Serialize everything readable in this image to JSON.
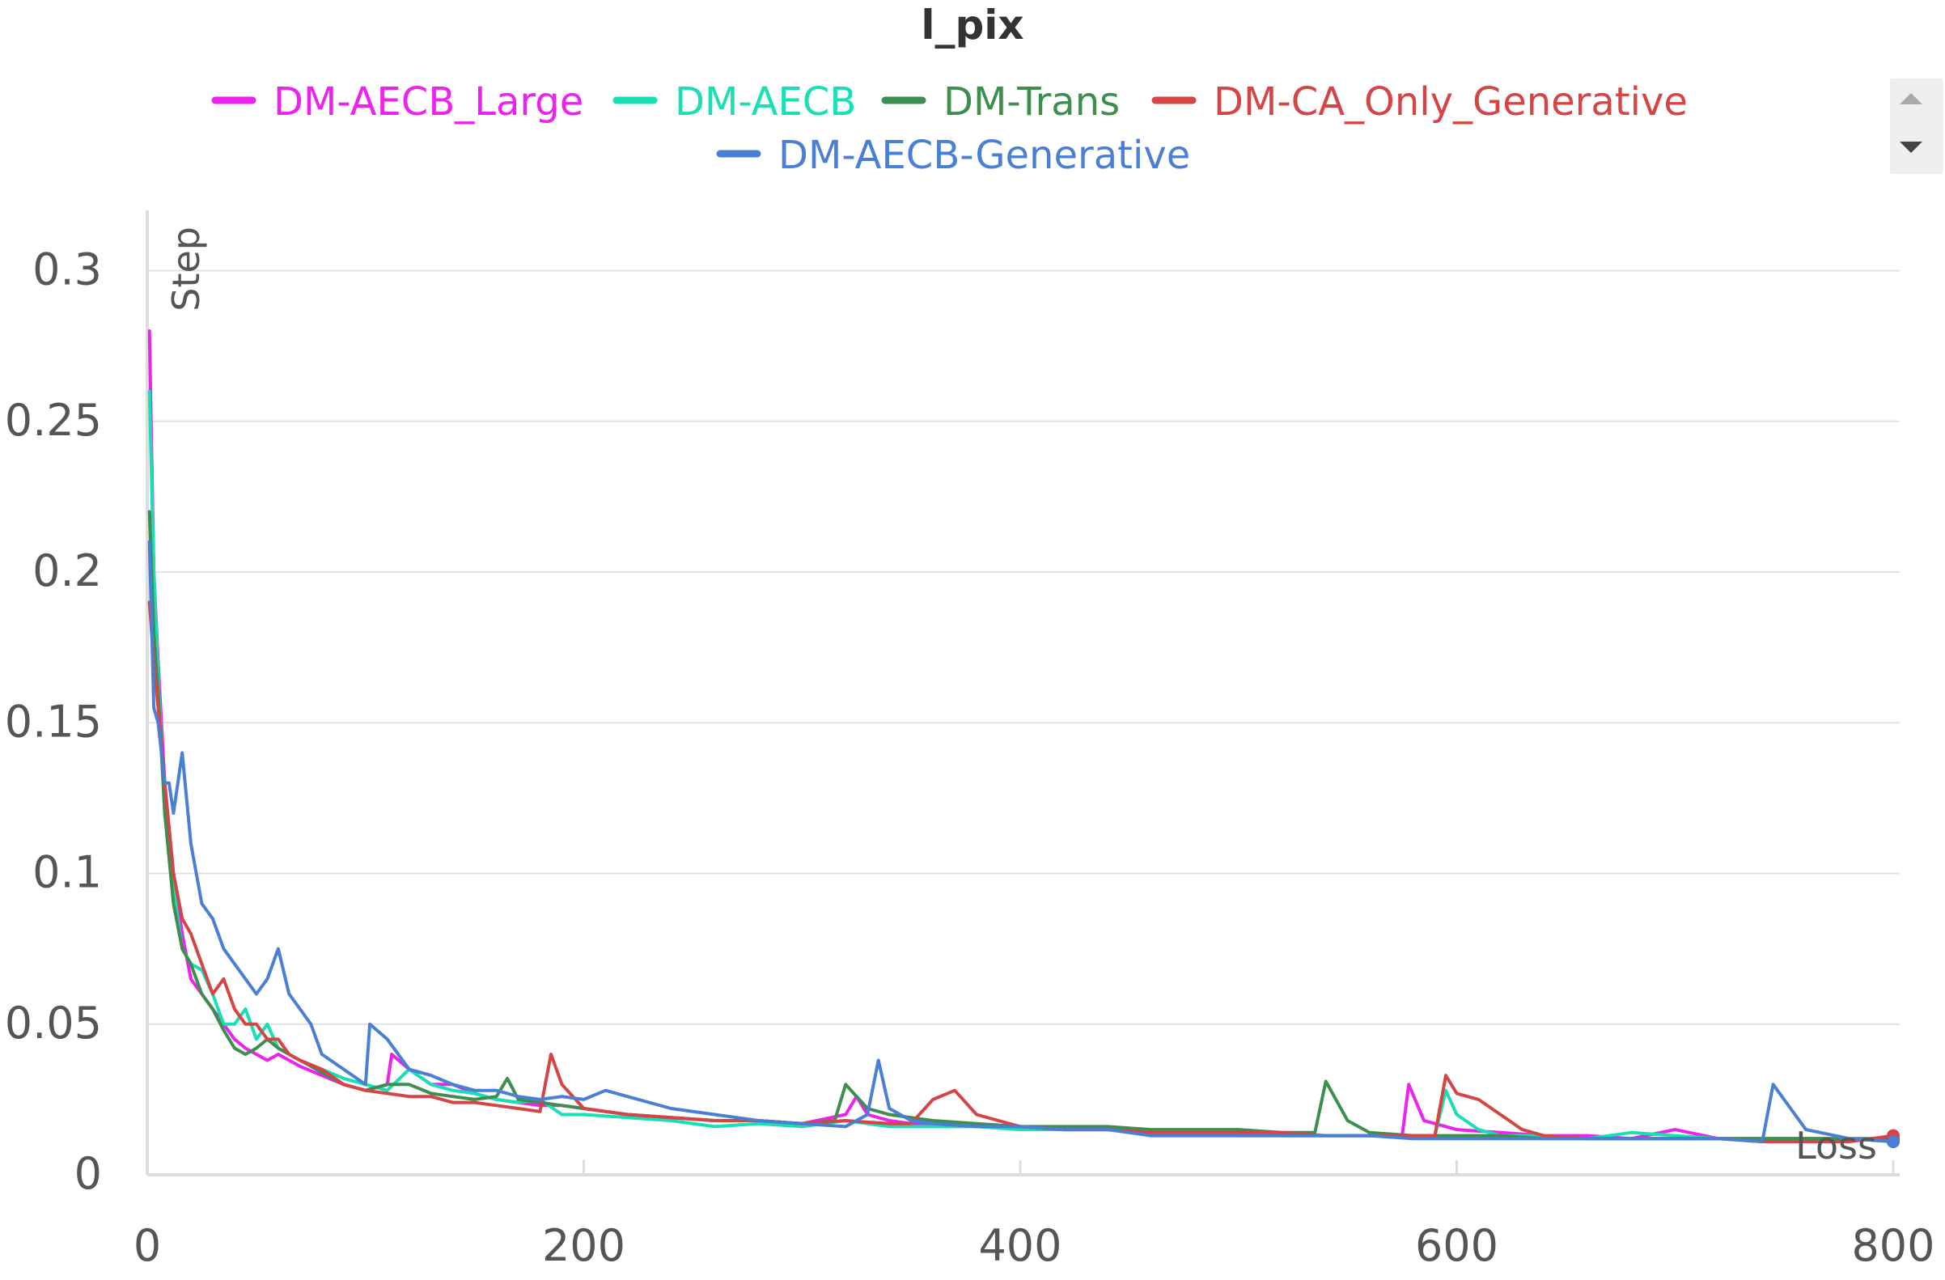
{
  "chart_data": {
    "type": "line",
    "title": "l_pix",
    "xlabel": "Step",
    "ylabel": "Loss",
    "xlim": [
      0,
      800
    ],
    "ylim": [
      0,
      0.32
    ],
    "xticks": [
      0,
      200,
      400,
      600,
      800
    ],
    "xtick_labels": [
      "0",
      "200",
      "400",
      "600",
      "800"
    ],
    "yticks": [
      0,
      0.05,
      0.1,
      0.15,
      0.2,
      0.25,
      0.3
    ],
    "ytick_labels": [
      "0",
      "0.05",
      "0.1",
      "0.15",
      "0.2",
      "0.25",
      "0.3"
    ],
    "grid": true,
    "legend_position": "top-center",
    "series": [
      {
        "name": "DM-AECB_Large",
        "color": "#ee22ee",
        "x": [
          1,
          3,
          5,
          8,
          12,
          16,
          20,
          25,
          30,
          35,
          40,
          45,
          50,
          55,
          60,
          65,
          70,
          80,
          90,
          100,
          110,
          112,
          120,
          130,
          140,
          150,
          160,
          170,
          180,
          190,
          200,
          220,
          240,
          260,
          280,
          300,
          320,
          325,
          330,
          340,
          350,
          360,
          380,
          400,
          420,
          440,
          460,
          480,
          500,
          520,
          540,
          560,
          575,
          578,
          585,
          600,
          620,
          640,
          660,
          680,
          700,
          720,
          740,
          760,
          780,
          800
        ],
        "y": [
          0.28,
          0.2,
          0.17,
          0.13,
          0.1,
          0.08,
          0.065,
          0.06,
          0.055,
          0.05,
          0.045,
          0.042,
          0.04,
          0.038,
          0.04,
          0.038,
          0.036,
          0.033,
          0.03,
          0.028,
          0.03,
          0.04,
          0.035,
          0.03,
          0.03,
          0.027,
          0.025,
          0.024,
          0.023,
          0.023,
          0.022,
          0.02,
          0.019,
          0.018,
          0.018,
          0.017,
          0.02,
          0.026,
          0.02,
          0.018,
          0.017,
          0.017,
          0.016,
          0.016,
          0.015,
          0.015,
          0.014,
          0.014,
          0.014,
          0.013,
          0.013,
          0.013,
          0.013,
          0.03,
          0.018,
          0.015,
          0.014,
          0.013,
          0.013,
          0.012,
          0.015,
          0.012,
          0.012,
          0.012,
          0.012,
          0.011
        ]
      },
      {
        "name": "DM-AECB",
        "color": "#16e0b4",
        "x": [
          1,
          3,
          5,
          8,
          12,
          16,
          20,
          25,
          30,
          35,
          40,
          45,
          50,
          55,
          60,
          65,
          70,
          80,
          90,
          100,
          110,
          120,
          130,
          140,
          150,
          160,
          170,
          180,
          190,
          200,
          220,
          240,
          260,
          280,
          300,
          320,
          340,
          360,
          380,
          400,
          420,
          440,
          460,
          480,
          500,
          520,
          540,
          560,
          580,
          590,
          595,
          600,
          610,
          620,
          640,
          660,
          680,
          700,
          720,
          740,
          760,
          780,
          800
        ],
        "y": [
          0.26,
          0.2,
          0.165,
          0.12,
          0.095,
          0.075,
          0.07,
          0.068,
          0.06,
          0.05,
          0.05,
          0.055,
          0.045,
          0.05,
          0.042,
          0.04,
          0.038,
          0.035,
          0.032,
          0.03,
          0.028,
          0.035,
          0.03,
          0.028,
          0.027,
          0.025,
          0.024,
          0.025,
          0.02,
          0.02,
          0.019,
          0.018,
          0.016,
          0.017,
          0.016,
          0.018,
          0.016,
          0.016,
          0.016,
          0.015,
          0.015,
          0.015,
          0.014,
          0.014,
          0.013,
          0.013,
          0.013,
          0.013,
          0.013,
          0.013,
          0.028,
          0.02,
          0.015,
          0.013,
          0.013,
          0.012,
          0.014,
          0.013,
          0.012,
          0.012,
          0.012,
          0.012,
          0.011
        ]
      },
      {
        "name": "DM-Trans",
        "color": "#3d8f4f",
        "x": [
          1,
          3,
          5,
          8,
          12,
          16,
          20,
          25,
          30,
          35,
          40,
          45,
          50,
          55,
          60,
          65,
          70,
          80,
          90,
          100,
          110,
          120,
          130,
          140,
          150,
          160,
          165,
          170,
          180,
          190,
          200,
          220,
          240,
          260,
          280,
          300,
          315,
          320,
          330,
          340,
          360,
          380,
          400,
          420,
          440,
          460,
          480,
          500,
          520,
          535,
          540,
          550,
          560,
          580,
          600,
          620,
          640,
          660,
          680,
          700,
          720,
          740,
          760,
          780,
          800
        ],
        "y": [
          0.22,
          0.18,
          0.16,
          0.12,
          0.09,
          0.075,
          0.07,
          0.06,
          0.055,
          0.048,
          0.042,
          0.04,
          0.042,
          0.045,
          0.042,
          0.04,
          0.038,
          0.034,
          0.03,
          0.028,
          0.03,
          0.03,
          0.027,
          0.026,
          0.025,
          0.026,
          0.032,
          0.025,
          0.024,
          0.023,
          0.022,
          0.02,
          0.019,
          0.018,
          0.018,
          0.017,
          0.018,
          0.03,
          0.022,
          0.02,
          0.018,
          0.017,
          0.016,
          0.016,
          0.016,
          0.015,
          0.015,
          0.015,
          0.014,
          0.014,
          0.031,
          0.018,
          0.014,
          0.013,
          0.013,
          0.013,
          0.012,
          0.012,
          0.012,
          0.012,
          0.012,
          0.012,
          0.012,
          0.012,
          0.012
        ]
      },
      {
        "name": "DM-CA_Only_Generative",
        "color": "#d64545",
        "x": [
          1,
          3,
          5,
          8,
          12,
          16,
          20,
          25,
          30,
          35,
          40,
          45,
          50,
          55,
          60,
          65,
          70,
          80,
          90,
          100,
          110,
          120,
          130,
          140,
          150,
          160,
          170,
          180,
          185,
          190,
          200,
          220,
          240,
          260,
          280,
          300,
          320,
          340,
          350,
          360,
          370,
          380,
          400,
          420,
          440,
          460,
          480,
          500,
          520,
          540,
          560,
          580,
          590,
          595,
          600,
          610,
          620,
          630,
          640,
          660,
          680,
          700,
          720,
          740,
          760,
          780,
          800
        ],
        "y": [
          0.19,
          0.17,
          0.155,
          0.13,
          0.1,
          0.085,
          0.08,
          0.07,
          0.06,
          0.065,
          0.055,
          0.05,
          0.05,
          0.045,
          0.045,
          0.04,
          0.038,
          0.035,
          0.03,
          0.028,
          0.027,
          0.026,
          0.026,
          0.024,
          0.024,
          0.023,
          0.022,
          0.021,
          0.04,
          0.03,
          0.022,
          0.02,
          0.019,
          0.018,
          0.018,
          0.017,
          0.018,
          0.017,
          0.017,
          0.025,
          0.028,
          0.02,
          0.016,
          0.015,
          0.015,
          0.014,
          0.014,
          0.014,
          0.014,
          0.013,
          0.013,
          0.013,
          0.013,
          0.033,
          0.027,
          0.025,
          0.02,
          0.015,
          0.013,
          0.012,
          0.012,
          0.012,
          0.012,
          0.011,
          0.011,
          0.011,
          0.013
        ]
      },
      {
        "name": "DM-AECB-Generative",
        "color": "#4a7fd6",
        "x": [
          1,
          3,
          5,
          8,
          10,
          12,
          14,
          16,
          20,
          25,
          30,
          35,
          40,
          45,
          50,
          55,
          60,
          65,
          70,
          75,
          80,
          90,
          100,
          102,
          110,
          120,
          130,
          140,
          150,
          160,
          170,
          180,
          190,
          200,
          210,
          220,
          240,
          260,
          280,
          300,
          320,
          330,
          335,
          340,
          350,
          360,
          380,
          400,
          420,
          440,
          460,
          480,
          500,
          520,
          540,
          560,
          580,
          600,
          620,
          640,
          660,
          680,
          700,
          720,
          740,
          745,
          750,
          760,
          780,
          800
        ],
        "y": [
          0.21,
          0.155,
          0.15,
          0.13,
          0.13,
          0.12,
          0.13,
          0.14,
          0.11,
          0.09,
          0.085,
          0.075,
          0.07,
          0.065,
          0.06,
          0.065,
          0.075,
          0.06,
          0.055,
          0.05,
          0.04,
          0.035,
          0.03,
          0.05,
          0.045,
          0.035,
          0.033,
          0.03,
          0.028,
          0.028,
          0.026,
          0.025,
          0.026,
          0.025,
          0.028,
          0.026,
          0.022,
          0.02,
          0.018,
          0.017,
          0.016,
          0.02,
          0.038,
          0.022,
          0.018,
          0.017,
          0.016,
          0.016,
          0.015,
          0.015,
          0.013,
          0.013,
          0.013,
          0.013,
          0.013,
          0.013,
          0.012,
          0.012,
          0.012,
          0.012,
          0.012,
          0.012,
          0.012,
          0.012,
          0.011,
          0.03,
          0.025,
          0.015,
          0.012,
          0.011
        ]
      }
    ]
  }
}
